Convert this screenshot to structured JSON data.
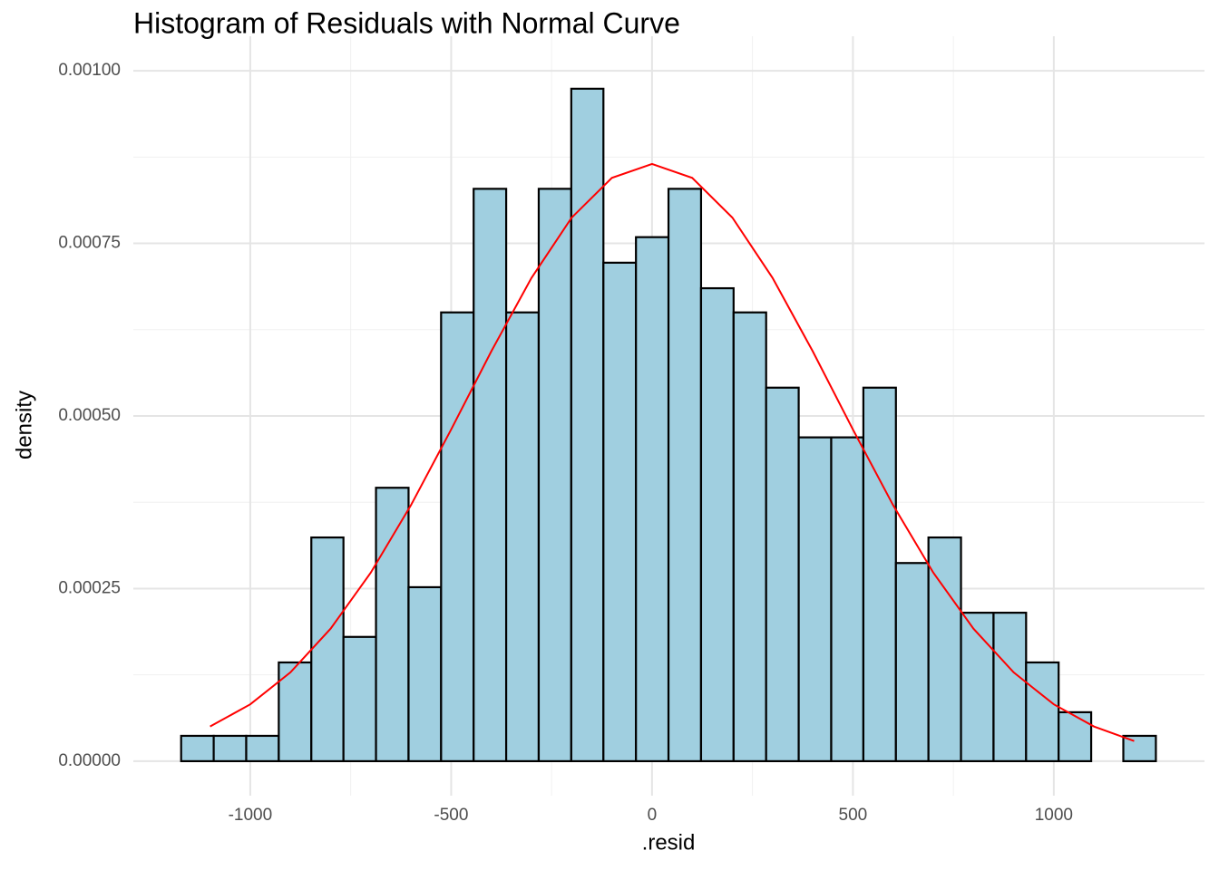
{
  "chart_data": {
    "type": "histogram",
    "title": "Histogram of Residuals with Normal Curve",
    "x_label": ".resid",
    "y_label": "density",
    "bins": [
      -1172,
      -1091,
      -1010,
      -929,
      -848,
      -768,
      -687,
      -606,
      -525,
      -444,
      -363,
      -282,
      -201,
      -121,
      -40,
      41,
      122,
      203,
      284,
      365,
      446,
      526,
      607,
      688,
      769,
      850,
      931,
      1012,
      1093,
      1173,
      1254
    ],
    "counts": [
      3.67e-05,
      3.67e-05,
      3.67e-05,
      0.000143,
      0.000324,
      0.00018,
      0.000396,
      0.000252,
      0.00065,
      0.000829,
      0.00065,
      0.000829,
      0.000974,
      0.000722,
      0.000759,
      0.000829,
      0.000685,
      0.00065,
      0.000541,
      0.000469,
      0.000469,
      0.000541,
      0.000287,
      0.000324,
      0.000215,
      0.000215,
      0.000143,
      7.09e-05,
      0,
      3.67e-05
    ],
    "color": "#a0cfe0",
    "edge_color": "#000000",
    "curve": {
      "color": "#ff0000",
      "x": [
        -1100,
        -1000,
        -900,
        -800,
        -700,
        -600,
        -500,
        -400,
        -300,
        -200,
        -100,
        0,
        100,
        200,
        300,
        400,
        500,
        600,
        700,
        800,
        900,
        1000,
        1100,
        1200
      ],
      "values": [
        5.02e-05,
        8.23e-05,
        0.0001286,
        0.0001919,
        0.0002731,
        0.0003708,
        0.0004804,
        0.0005937,
        0.0007,
        0.0007873,
        0.0008449,
        0.000865,
        0.0008449,
        0.0007873,
        0.0007,
        0.0005937,
        0.0004804,
        0.0003708,
        0.0002731,
        0.0001919,
        0.0001286,
        8.23e-05,
        5.02e-05,
        2.92e-05
      ]
    },
    "xlim": [
      -1291,
      1375
    ],
    "ylim": [
      -5e-05,
      0.00105
    ],
    "xticks": [
      -1000,
      -500,
      0,
      500,
      1000
    ],
    "yticks": [
      {
        "value": 0,
        "label": "0.00000"
      },
      {
        "value": 0.00025,
        "label": "0.00025"
      },
      {
        "value": 0.0005,
        "label": "0.00050"
      },
      {
        "value": 0.00075,
        "label": "0.00075"
      },
      {
        "value": 0.001,
        "label": "0.00100"
      }
    ],
    "grid": true
  }
}
